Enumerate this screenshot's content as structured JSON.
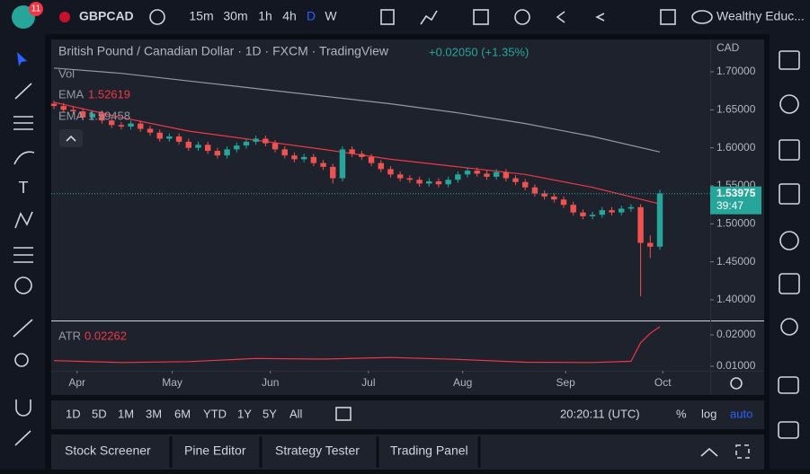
{
  "toolbar": {
    "badge": "11",
    "symbol": "GBPCAD",
    "intervals": [
      "15m",
      "30m",
      "1h",
      "4h",
      "D",
      "W"
    ],
    "account": "Wealthy Educ..."
  },
  "chart_data": {
    "type": "candlestick",
    "title": "British Pound / Canadian Dollar · 1D · FXCM · TradingView",
    "change": "+0.02050 (+1.35%)",
    "currency": "CAD",
    "volume_label": "Vol",
    "up_color": "#26a69a",
    "down_color": "#ef5350",
    "xlim": [
      0,
      63
    ],
    "xticks": [
      {
        "value": 2.4,
        "label": "Apr"
      },
      {
        "value": 12.3,
        "label": "May"
      },
      {
        "value": 22.5,
        "label": "Jun"
      },
      {
        "value": 32.7,
        "label": "Jul"
      },
      {
        "value": 42.5,
        "label": "Aug"
      },
      {
        "value": 53.2,
        "label": "Sep"
      },
      {
        "value": 63.3,
        "label": "Oct"
      }
    ],
    "ylim": [
      1.3729,
      1.7425
    ],
    "yticks": [
      {
        "value": 1.4,
        "label": "1.40000"
      },
      {
        "value": 1.45,
        "label": "1.45000"
      },
      {
        "value": 1.5,
        "label": "1.50000"
      },
      {
        "value": 1.55,
        "label": "1.55000"
      },
      {
        "value": 1.6,
        "label": "1.60000"
      },
      {
        "value": 1.65,
        "label": "1.65000"
      },
      {
        "value": 1.7,
        "label": "1.70000"
      }
    ],
    "ohlc": [
      [
        1.658,
        1.662,
        1.651,
        1.655
      ],
      [
        1.655,
        1.659,
        1.646,
        1.65
      ],
      [
        1.65,
        1.654,
        1.644,
        1.648
      ],
      [
        1.648,
        1.652,
        1.636,
        1.64
      ],
      [
        1.64,
        1.649,
        1.636,
        1.645
      ],
      [
        1.645,
        1.649,
        1.632,
        1.636
      ],
      [
        1.636,
        1.64,
        1.626,
        1.63
      ],
      [
        1.63,
        1.634,
        1.624,
        1.628
      ],
      [
        1.628,
        1.636,
        1.624,
        1.632
      ],
      [
        1.632,
        1.636,
        1.621,
        1.625
      ],
      [
        1.625,
        1.629,
        1.616,
        1.62
      ],
      [
        1.62,
        1.624,
        1.608,
        1.612
      ],
      [
        1.612,
        1.619,
        1.608,
        1.615
      ],
      [
        1.615,
        1.619,
        1.604,
        1.608
      ],
      [
        1.608,
        1.612,
        1.596,
        1.6
      ],
      [
        1.6,
        1.608,
        1.596,
        1.604
      ],
      [
        1.604,
        1.608,
        1.592,
        1.596
      ],
      [
        1.596,
        1.6,
        1.586,
        1.59
      ],
      [
        1.59,
        1.602,
        1.586,
        1.598
      ],
      [
        1.598,
        1.607,
        1.594,
        1.603
      ],
      [
        1.603,
        1.612,
        1.599,
        1.608
      ],
      [
        1.608,
        1.616,
        1.604,
        1.612
      ],
      [
        1.612,
        1.616,
        1.602,
        1.606
      ],
      [
        1.606,
        1.61,
        1.594,
        1.598
      ],
      [
        1.598,
        1.602,
        1.586,
        1.59
      ],
      [
        1.59,
        1.594,
        1.581,
        1.585
      ],
      [
        1.585,
        1.592,
        1.581,
        1.588
      ],
      [
        1.588,
        1.592,
        1.576,
        1.58
      ],
      [
        1.58,
        1.584,
        1.571,
        1.575
      ],
      [
        1.575,
        1.579,
        1.553,
        1.56
      ],
      [
        1.56,
        1.602,
        1.556,
        1.598
      ],
      [
        1.598,
        1.602,
        1.588,
        1.592
      ],
      [
        1.592,
        1.596,
        1.584,
        1.588
      ],
      [
        1.588,
        1.592,
        1.576,
        1.58
      ],
      [
        1.58,
        1.584,
        1.568,
        1.572
      ],
      [
        1.572,
        1.576,
        1.561,
        1.565
      ],
      [
        1.565,
        1.569,
        1.556,
        1.56
      ],
      [
        1.56,
        1.564,
        1.554,
        1.558
      ],
      [
        1.558,
        1.562,
        1.549,
        1.553
      ],
      [
        1.553,
        1.56,
        1.549,
        1.556
      ],
      [
        1.556,
        1.56,
        1.548,
        1.552
      ],
      [
        1.552,
        1.562,
        1.548,
        1.558
      ],
      [
        1.558,
        1.569,
        1.554,
        1.565
      ],
      [
        1.565,
        1.574,
        1.561,
        1.57
      ],
      [
        1.57,
        1.574,
        1.562,
        1.566
      ],
      [
        1.566,
        1.57,
        1.558,
        1.562
      ],
      [
        1.562,
        1.572,
        1.558,
        1.568
      ],
      [
        1.568,
        1.572,
        1.556,
        1.56
      ],
      [
        1.56,
        1.564,
        1.551,
        1.555
      ],
      [
        1.555,
        1.559,
        1.544,
        1.548
      ],
      [
        1.548,
        1.552,
        1.536,
        1.54
      ],
      [
        1.54,
        1.544,
        1.532,
        1.536
      ],
      [
        1.536,
        1.54,
        1.528,
        1.532
      ],
      [
        1.532,
        1.536,
        1.521,
        1.525
      ],
      [
        1.525,
        1.529,
        1.511,
        1.515
      ],
      [
        1.515,
        1.519,
        1.506,
        1.51
      ],
      [
        1.51,
        1.516,
        1.506,
        1.512
      ],
      [
        1.512,
        1.522,
        1.508,
        1.518
      ],
      [
        1.518,
        1.522,
        1.511,
        1.515
      ],
      [
        1.515,
        1.524,
        1.511,
        1.52
      ],
      [
        1.52,
        1.526,
        1.516,
        1.522
      ],
      [
        1.522,
        1.526,
        1.405,
        1.475
      ],
      [
        1.475,
        1.485,
        1.455,
        1.47
      ],
      [
        1.47,
        1.545,
        1.466,
        1.54
      ]
    ],
    "series": [
      {
        "name": "EMA",
        "color": "#f23645",
        "x": [
          0,
          7,
          14,
          21,
          28,
          35,
          42,
          49,
          56,
          63
        ],
        "values": [
          1.66,
          1.64,
          1.622,
          1.61,
          1.598,
          1.585,
          1.575,
          1.565,
          1.548,
          1.52619
        ]
      },
      {
        "name": "EMA",
        "color": "#9598a1",
        "x": [
          0,
          7,
          14,
          21,
          28,
          35,
          42,
          49,
          56,
          63
        ],
        "values": [
          1.705,
          1.698,
          1.688,
          1.678,
          1.668,
          1.658,
          1.646,
          1.632,
          1.615,
          1.59458
        ]
      }
    ],
    "last_price": {
      "value": 1.53975,
      "countdown": "39:47",
      "color": "#26a69a"
    },
    "atr": {
      "name": "ATR",
      "color": "#f23645",
      "ylim": [
        0.00857,
        0.0243
      ],
      "yticks": [
        {
          "value": 0.01,
          "label": "0.01000"
        },
        {
          "value": 0.02,
          "label": "0.02000"
        }
      ],
      "x": [
        0,
        7,
        14,
        21,
        28,
        35,
        42,
        49,
        56,
        60,
        61,
        62,
        63
      ],
      "values": [
        0.0118,
        0.0112,
        0.0115,
        0.0125,
        0.0123,
        0.0128,
        0.0122,
        0.0113,
        0.0112,
        0.0116,
        0.0175,
        0.0205,
        0.02262
      ]
    }
  },
  "range_bar": {
    "ranges": [
      "1D",
      "5D",
      "1M",
      "3M",
      "6M",
      "YTD",
      "1Y",
      "5Y",
      "All"
    ],
    "clock": "20:20:11 (UTC)",
    "percent": "%",
    "log": "log",
    "auto": "auto"
  },
  "panel_tabs": [
    "Stock Screener",
    "Pine Editor",
    "Strategy Tester",
    "Trading Panel"
  ]
}
